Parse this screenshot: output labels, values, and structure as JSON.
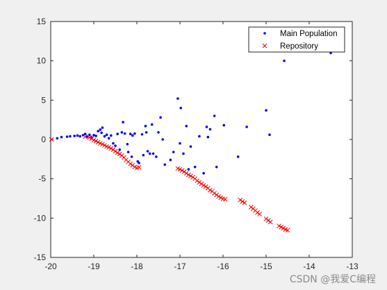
{
  "chart_data": {
    "type": "scatter",
    "xlim": [
      -20,
      -13
    ],
    "ylim": [
      -15,
      15
    ],
    "xticks": [
      -20,
      -19,
      -18,
      -17,
      -16,
      -15,
      -14,
      -13
    ],
    "yticks": [
      -15,
      -10,
      -5,
      0,
      5,
      10,
      15
    ],
    "grid": false,
    "legend_position": "top-right",
    "series": [
      {
        "name": "Main Population",
        "marker": "dot",
        "color": "#0000ff",
        "points": [
          [
            -19.85,
            0.15
          ],
          [
            -19.75,
            0.3
          ],
          [
            -19.62,
            0.35
          ],
          [
            -19.55,
            0.4
          ],
          [
            -19.45,
            0.45
          ],
          [
            -19.38,
            0.5
          ],
          [
            -19.32,
            0.4
          ],
          [
            -19.25,
            0.55
          ],
          [
            -19.2,
            0.7
          ],
          [
            -19.15,
            0.35
          ],
          [
            -19.1,
            0.6
          ],
          [
            -19.05,
            0.25
          ],
          [
            -19.0,
            0.55
          ],
          [
            -18.95,
            0.45
          ],
          [
            -18.9,
            1.05
          ],
          [
            -18.85,
            1.25
          ],
          [
            -18.82,
            0.85
          ],
          [
            -18.8,
            1.5
          ],
          [
            -18.75,
            0.4
          ],
          [
            -18.7,
            0.6
          ],
          [
            -18.65,
            0.15
          ],
          [
            -18.6,
            0.5
          ],
          [
            -18.55,
            -0.5
          ],
          [
            -18.5,
            -0.8
          ],
          [
            -18.45,
            0.7
          ],
          [
            -18.4,
            -1.3
          ],
          [
            -18.35,
            0.9
          ],
          [
            -18.32,
            2.2
          ],
          [
            -18.28,
            0.75
          ],
          [
            -18.22,
            -0.6
          ],
          [
            -18.2,
            -1.6
          ],
          [
            -18.15,
            0.7
          ],
          [
            -18.12,
            -2.2
          ],
          [
            -18.1,
            0.5
          ],
          [
            -18.05,
            0.75
          ],
          [
            -17.98,
            -2.8
          ],
          [
            -17.95,
            -3.0
          ],
          [
            -17.88,
            0.65
          ],
          [
            -17.85,
            -2.0
          ],
          [
            -17.8,
            1.7
          ],
          [
            -17.78,
            0.9
          ],
          [
            -17.75,
            -1.5
          ],
          [
            -17.7,
            -1.8
          ],
          [
            -17.65,
            1.9
          ],
          [
            -17.62,
            -1.8
          ],
          [
            -17.55,
            -2.2
          ],
          [
            -17.5,
            0.9
          ],
          [
            -17.45,
            2.8
          ],
          [
            -17.4,
            0.0
          ],
          [
            -17.35,
            -3.2
          ],
          [
            -17.22,
            -2.6
          ],
          [
            -17.15,
            -1.6
          ],
          [
            -17.05,
            5.2
          ],
          [
            -17.0,
            -0.5
          ],
          [
            -16.98,
            4.0
          ],
          [
            -16.92,
            -1.8
          ],
          [
            -16.85,
            1.7
          ],
          [
            -16.8,
            -3.8
          ],
          [
            -16.75,
            -0.9
          ],
          [
            -16.65,
            -3.5
          ],
          [
            -16.55,
            0.4
          ],
          [
            -16.45,
            -4.3
          ],
          [
            -16.38,
            1.6
          ],
          [
            -16.35,
            0.3
          ],
          [
            -16.3,
            1.3
          ],
          [
            -16.2,
            3.0
          ],
          [
            -16.15,
            -3.5
          ],
          [
            -15.98,
            1.8
          ],
          [
            -15.65,
            -2.2
          ],
          [
            -15.45,
            1.6
          ],
          [
            -15.0,
            3.7
          ],
          [
            -14.92,
            0.6
          ],
          [
            -14.58,
            10.0
          ],
          [
            -13.5,
            11.0
          ]
        ]
      },
      {
        "name": "Repository",
        "marker": "x",
        "color": "#ff0000",
        "points": [
          [
            -19.98,
            0.0
          ],
          [
            -19.2,
            0.35
          ],
          [
            -19.1,
            0.25
          ],
          [
            -19.05,
            0.1
          ],
          [
            -19.0,
            -0.1
          ],
          [
            -18.95,
            -0.2
          ],
          [
            -18.9,
            -0.35
          ],
          [
            -18.85,
            -0.5
          ],
          [
            -18.8,
            -0.6
          ],
          [
            -18.75,
            -0.75
          ],
          [
            -18.7,
            -0.9
          ],
          [
            -18.65,
            -1.0
          ],
          [
            -18.6,
            -1.15
          ],
          [
            -18.55,
            -1.3
          ],
          [
            -18.5,
            -1.5
          ],
          [
            -18.45,
            -1.7
          ],
          [
            -18.4,
            -1.85
          ],
          [
            -18.35,
            -2.05
          ],
          [
            -18.3,
            -2.3
          ],
          [
            -18.25,
            -2.6
          ],
          [
            -18.2,
            -2.85
          ],
          [
            -18.15,
            -3.1
          ],
          [
            -18.1,
            -3.3
          ],
          [
            -18.05,
            -3.5
          ],
          [
            -18.0,
            -3.6
          ],
          [
            -17.95,
            -3.55
          ],
          [
            -17.05,
            -3.7
          ],
          [
            -17.0,
            -3.8
          ],
          [
            -16.95,
            -3.95
          ],
          [
            -16.9,
            -4.1
          ],
          [
            -16.85,
            -4.3
          ],
          [
            -16.8,
            -4.5
          ],
          [
            -16.75,
            -4.65
          ],
          [
            -16.7,
            -4.8
          ],
          [
            -16.65,
            -5.0
          ],
          [
            -16.6,
            -5.25
          ],
          [
            -16.55,
            -5.45
          ],
          [
            -16.5,
            -5.65
          ],
          [
            -16.45,
            -5.85
          ],
          [
            -16.4,
            -6.0
          ],
          [
            -16.35,
            -6.2
          ],
          [
            -16.3,
            -6.45
          ],
          [
            -16.25,
            -6.6
          ],
          [
            -16.2,
            -6.85
          ],
          [
            -16.15,
            -7.05
          ],
          [
            -16.1,
            -7.25
          ],
          [
            -16.05,
            -7.4
          ],
          [
            -16.0,
            -7.55
          ],
          [
            -15.95,
            -7.6
          ],
          [
            -15.6,
            -7.7
          ],
          [
            -15.55,
            -7.9
          ],
          [
            -15.5,
            -8.05
          ],
          [
            -15.35,
            -8.6
          ],
          [
            -15.3,
            -8.8
          ],
          [
            -15.25,
            -9.05
          ],
          [
            -15.2,
            -9.3
          ],
          [
            -15.15,
            -9.5
          ],
          [
            -15.0,
            -10.1
          ],
          [
            -14.95,
            -10.3
          ],
          [
            -14.9,
            -10.5
          ],
          [
            -14.7,
            -11.0
          ],
          [
            -14.65,
            -11.15
          ],
          [
            -14.6,
            -11.3
          ],
          [
            -14.55,
            -11.45
          ],
          [
            -14.5,
            -11.55
          ]
        ]
      }
    ]
  },
  "watermark": "CSDN @我爱C编程"
}
